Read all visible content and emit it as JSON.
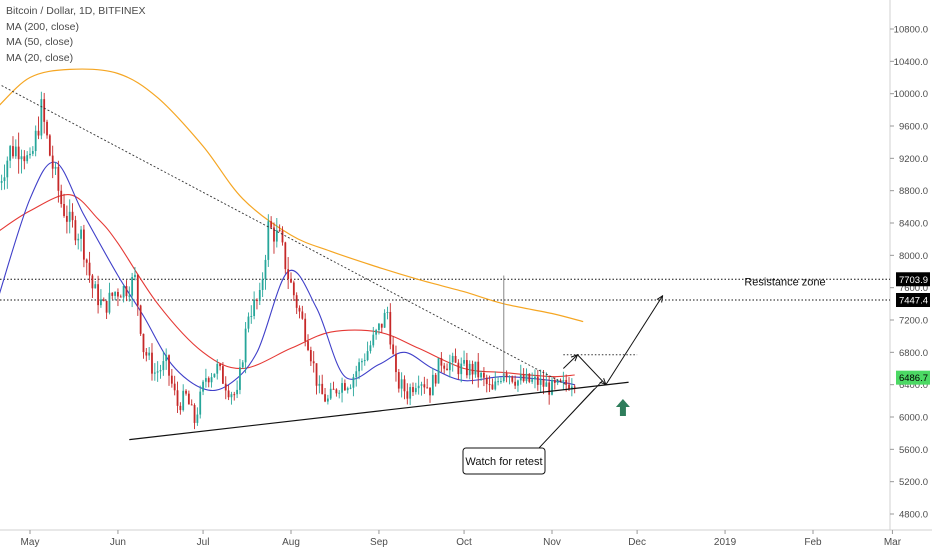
{
  "header": {
    "title": "Bitcoin / Dollar, 1D, BITFINEX",
    "indicators": [
      "MA (200, close)",
      "MA (50, close)",
      "MA (20, close)"
    ]
  },
  "colors": {
    "up": "#26a69a",
    "down": "#c62828",
    "ma200": "#f5a623",
    "ma50": "#e53935",
    "ma20": "#3f3fc9",
    "current_tag": "#4cd964",
    "level_tag": "#000000",
    "arrow_up": "#2e7d5b"
  },
  "chart_data": {
    "type": "candlestick",
    "symbol": "Bitcoin / Dollar",
    "timeframe": "1D",
    "exchange": "BITFINEX",
    "y_ticks": [
      "10800.0",
      "10400.0",
      "10000.0",
      "9600.0",
      "9200.0",
      "8800.0",
      "8400.0",
      "8000.0",
      "7600.0",
      "7200.0",
      "6800.0",
      "6400.0",
      "6000.0",
      "5600.0",
      "5200.0",
      "4800.0"
    ],
    "y_tick_values": [
      10800,
      10400,
      10000,
      9600,
      9200,
      8800,
      8400,
      8000,
      7600,
      7200,
      6800,
      6400,
      6000,
      5600,
      5200,
      4800
    ],
    "ylim": [
      4620,
      11100
    ],
    "x_ticks": [
      "May",
      "Jun",
      "Jul",
      "Aug",
      "Sep",
      "Oct",
      "Nov",
      "Dec",
      "2019",
      "Feb",
      "Mar"
    ],
    "x_tick_dates": [
      "2018-05-01",
      "2018-06-01",
      "2018-07-01",
      "2018-08-01",
      "2018-09-01",
      "2018-10-01",
      "2018-11-01",
      "2018-12-01",
      "2019-01-01",
      "2019-02-01",
      "2019-03-01"
    ],
    "close_anchors": [
      [
        "2018-04-20",
        8900
      ],
      [
        "2018-04-24",
        9300
      ],
      [
        "2018-04-28",
        9350
      ],
      [
        "2018-05-01",
        9100
      ],
      [
        "2018-05-05",
        9800
      ],
      [
        "2018-05-08",
        9250
      ],
      [
        "2018-05-12",
        8650
      ],
      [
        "2018-05-15",
        8400
      ],
      [
        "2018-05-19",
        8250
      ],
      [
        "2018-05-23",
        7600
      ],
      [
        "2018-05-27",
        7350
      ],
      [
        "2018-05-31",
        7550
      ],
      [
        "2018-06-04",
        7600
      ],
      [
        "2018-06-07",
        7700
      ],
      [
        "2018-06-10",
        6850
      ],
      [
        "2018-06-14",
        6550
      ],
      [
        "2018-06-18",
        6650
      ],
      [
        "2018-06-22",
        6150
      ],
      [
        "2018-06-25",
        6250
      ],
      [
        "2018-06-28",
        5950
      ],
      [
        "2018-07-02",
        6500
      ],
      [
        "2018-07-06",
        6600
      ],
      [
        "2018-07-10",
        6350
      ],
      [
        "2018-07-13",
        6250
      ],
      [
        "2018-07-17",
        7300
      ],
      [
        "2018-07-21",
        7450
      ],
      [
        "2018-07-24",
        8350
      ],
      [
        "2018-07-28",
        8200
      ],
      [
        "2018-07-31",
        7750
      ],
      [
        "2018-08-03",
        7400
      ],
      [
        "2018-08-07",
        6950
      ],
      [
        "2018-08-11",
        6300
      ],
      [
        "2018-08-14",
        6200
      ],
      [
        "2018-08-18",
        6400
      ],
      [
        "2018-08-22",
        6450
      ],
      [
        "2018-08-26",
        6700
      ],
      [
        "2018-08-30",
        6950
      ],
      [
        "2018-09-04",
        7300
      ],
      [
        "2018-09-07",
        6450
      ],
      [
        "2018-09-11",
        6300
      ],
      [
        "2018-09-15",
        6500
      ],
      [
        "2018-09-19",
        6350
      ],
      [
        "2018-09-23",
        6700
      ],
      [
        "2018-09-27",
        6650
      ],
      [
        "2018-09-30",
        6600
      ],
      [
        "2018-10-05",
        6580
      ],
      [
        "2018-10-11",
        6300
      ],
      [
        "2018-10-15",
        6600
      ],
      [
        "2018-10-20",
        6450
      ],
      [
        "2018-10-27",
        6430
      ],
      [
        "2018-11-01",
        6350
      ],
      [
        "2018-11-05",
        6380
      ],
      [
        "2018-11-09",
        6486.7
      ]
    ],
    "ma200": [
      [
        "2018-04-20",
        9850
      ],
      [
        "2018-05-01",
        10200
      ],
      [
        "2018-05-15",
        10300
      ],
      [
        "2018-06-01",
        10250
      ],
      [
        "2018-06-15",
        9950
      ],
      [
        "2018-07-01",
        9350
      ],
      [
        "2018-07-15",
        8700
      ],
      [
        "2018-08-01",
        8250
      ],
      [
        "2018-08-15",
        8050
      ],
      [
        "2018-09-01",
        7850
      ],
      [
        "2018-09-15",
        7700
      ],
      [
        "2018-10-01",
        7550
      ],
      [
        "2018-10-15",
        7400
      ],
      [
        "2018-11-01",
        7280
      ],
      [
        "2018-11-12",
        7180
      ]
    ],
    "ma50": [
      [
        "2018-04-20",
        8300
      ],
      [
        "2018-05-01",
        8550
      ],
      [
        "2018-05-15",
        8750
      ],
      [
        "2018-05-25",
        8450
      ],
      [
        "2018-06-01",
        8150
      ],
      [
        "2018-06-15",
        7400
      ],
      [
        "2018-07-01",
        6800
      ],
      [
        "2018-07-15",
        6600
      ],
      [
        "2018-08-01",
        6850
      ],
      [
        "2018-08-15",
        7050
      ],
      [
        "2018-09-01",
        7050
      ],
      [
        "2018-09-15",
        6850
      ],
      [
        "2018-10-01",
        6600
      ],
      [
        "2018-10-15",
        6550
      ],
      [
        "2018-11-01",
        6500
      ],
      [
        "2018-11-09",
        6520
      ]
    ],
    "ma20": [
      [
        "2018-04-20",
        7500
      ],
      [
        "2018-05-01",
        8700
      ],
      [
        "2018-05-10",
        9150
      ],
      [
        "2018-05-20",
        8500
      ],
      [
        "2018-06-01",
        7750
      ],
      [
        "2018-06-10",
        7250
      ],
      [
        "2018-06-20",
        6650
      ],
      [
        "2018-07-01",
        6350
      ],
      [
        "2018-07-10",
        6400
      ],
      [
        "2018-07-20",
        6800
      ],
      [
        "2018-07-31",
        7800
      ],
      [
        "2018-08-10",
        7350
      ],
      [
        "2018-08-20",
        6500
      ],
      [
        "2018-09-01",
        6650
      ],
      [
        "2018-09-10",
        6800
      ],
      [
        "2018-09-20",
        6600
      ],
      [
        "2018-10-01",
        6450
      ],
      [
        "2018-10-15",
        6500
      ],
      [
        "2018-11-01",
        6450
      ],
      [
        "2018-11-09",
        6400
      ]
    ],
    "horizontal_levels": [
      7703.9,
      7447.4
    ],
    "level_tags": [
      "7703.9",
      "7447.4"
    ],
    "current_price_tag": "6486.7",
    "current_price": 6486.7,
    "spike": {
      "date": "2018-10-15",
      "high": 7750
    },
    "downtrend_line": [
      [
        "2018-04-21",
        10100
      ],
      [
        "2018-11-06",
        6400
      ]
    ],
    "support_line": [
      [
        "2018-06-05",
        5720
      ],
      [
        "2018-11-28",
        6430
      ]
    ],
    "target_box": [
      [
        "2018-11-05",
        6770
      ],
      [
        "2018-12-01",
        6770
      ]
    ],
    "projection_path": [
      [
        "2018-11-05",
        6600
      ],
      [
        "2018-11-10",
        6770
      ],
      [
        "2018-11-20",
        6400
      ],
      [
        "2018-12-10",
        7500
      ]
    ],
    "annotations": {
      "resistance_label": "Resistance zone",
      "retest_label": "Watch for retest"
    },
    "retest_callout_points": [
      [
        "2018-10-20",
        5560
      ],
      [
        "2018-11-16",
        6350
      ]
    ],
    "up_arrow_at": [
      "2018-11-26",
      6000
    ],
    "grid": false,
    "legend_position": "top-left"
  }
}
